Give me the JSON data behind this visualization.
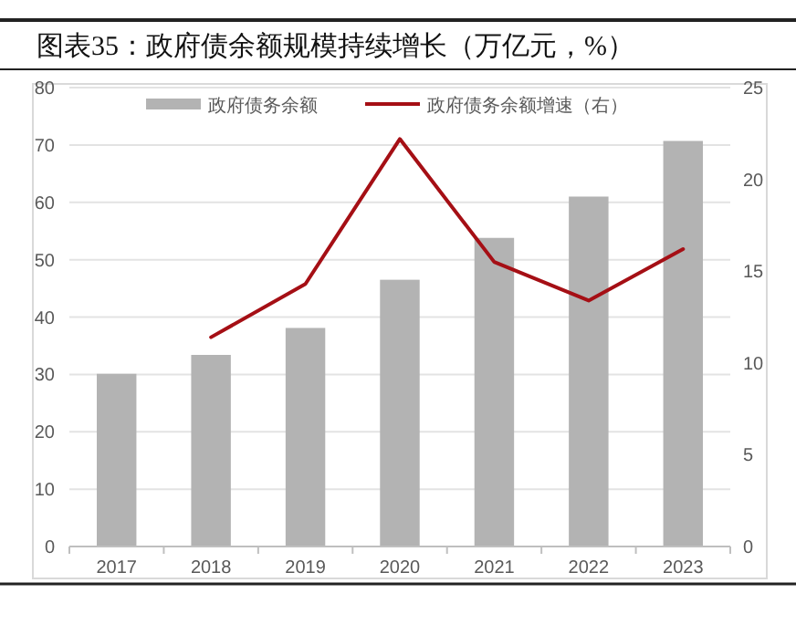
{
  "chart_data": {
    "type": "bar",
    "title": "图表35：政府债余额规模持续增长（万亿元，%）",
    "categories": [
      "2017",
      "2018",
      "2019",
      "2020",
      "2021",
      "2022",
      "2023"
    ],
    "series": [
      {
        "name": "政府债务余额",
        "color": "#b3b3b3",
        "values": [
          30.1,
          33.4,
          38.1,
          46.5,
          53.8,
          61.0,
          70.7
        ]
      },
      {
        "name": "政府债务余额增速（右）",
        "type": "line",
        "axis": "y2",
        "color": "#a50f15",
        "values": [
          null,
          11.4,
          14.3,
          22.2,
          15.5,
          13.4,
          16.2
        ]
      }
    ],
    "ylim": [
      0,
      80
    ],
    "yticks": [
      0,
      10,
      20,
      30,
      40,
      50,
      60,
      70,
      80
    ],
    "y2lim": [
      0,
      25
    ],
    "y2ticks": [
      0,
      5,
      10,
      15,
      20,
      25
    ],
    "grid": "y",
    "legend": "top"
  }
}
